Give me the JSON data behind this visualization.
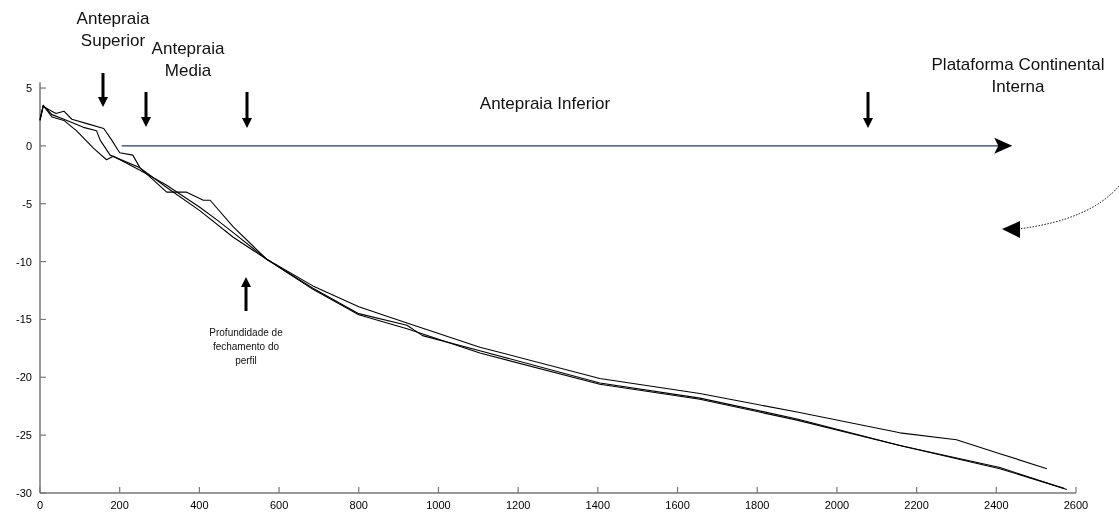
{
  "chart_data": {
    "type": "line",
    "xlim": [
      0,
      2600
    ],
    "xticks": [
      0,
      200,
      400,
      600,
      800,
      1000,
      1200,
      1400,
      1600,
      1800,
      2000,
      2200,
      2400,
      2600
    ],
    "ylim": [
      -30,
      5.5
    ],
    "yticks": [
      -30,
      -25,
      -20,
      -15,
      -10,
      -5,
      0,
      5
    ],
    "grid": false,
    "marker": "none",
    "line_style": "solid",
    "annotations": [
      "Antepraia Superior",
      "Antepraia Media",
      "Antepraia Inferior",
      "Plataforma Continental Interna",
      "Profundidade de fechamento do perfil"
    ],
    "series": [
      {
        "color": "#1f3a78",
        "x": [
          205,
          2430
        ],
        "values": [
          0,
          0
        ]
      },
      {
        "color": "#000000",
        "x": [
          0,
          8,
          30,
          60,
          109,
          142,
          151,
          176,
          251,
          318,
          401,
          485,
          569,
          685,
          800,
          921,
          1104,
          1405,
          1656,
          1900,
          2158,
          2300,
          2409,
          2527
        ],
        "values": [
          2.2,
          3.5,
          2.7,
          2.3,
          1.6,
          1.3,
          0.5,
          -0.8,
          -1.9,
          -3.6,
          -5.6,
          -7.9,
          -9.8,
          -12.1,
          -13.9,
          -15.3,
          -17.4,
          -20.1,
          -21.4,
          -23.0,
          -24.8,
          -25.4,
          -26.6,
          -27.9
        ]
      },
      {
        "color": "#000000",
        "x": [
          0,
          8,
          40,
          60,
          80,
          120,
          160,
          180,
          200,
          233,
          251,
          318,
          368,
          410,
          427,
          485,
          569,
          685,
          800,
          921,
          960,
          1104,
          1405,
          1656,
          1900,
          2158,
          2409,
          2577
        ],
        "values": [
          2.3,
          3.4,
          2.8,
          3.0,
          2.3,
          1.9,
          1.5,
          0.5,
          -0.6,
          -0.8,
          -1.9,
          -4.0,
          -4.0,
          -4.7,
          -4.7,
          -7.0,
          -9.8,
          -12.3,
          -14.5,
          -15.5,
          -16.4,
          -17.7,
          -20.5,
          -21.8,
          -23.6,
          -25.9,
          -27.8,
          -29.7
        ]
      },
      {
        "color": "#000000",
        "x": [
          0,
          8,
          30,
          60,
          92,
          134,
          167,
          184,
          251,
          318,
          401,
          444,
          485,
          569,
          685,
          800,
          921,
          1104,
          1405,
          1656,
          1900,
          2158,
          2409,
          2570
        ],
        "values": [
          2.2,
          3.5,
          2.5,
          2.2,
          1.3,
          -0.2,
          -1.2,
          -0.9,
          -2.1,
          -3.4,
          -5.3,
          -6.4,
          -7.5,
          -9.8,
          -12.4,
          -14.6,
          -15.8,
          -17.9,
          -20.6,
          -21.9,
          -23.7,
          -25.9,
          -27.9,
          -29.6
        ]
      }
    ]
  }
}
